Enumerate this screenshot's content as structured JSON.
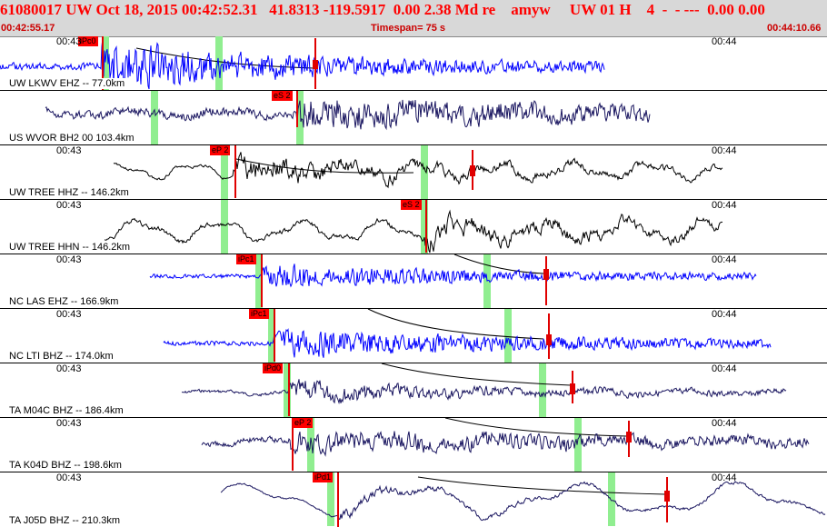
{
  "header": {
    "main": "61080017 UW Oct 18, 2015 00:42:52.31   41.8313 -119.5917  0.00 2.38 Md re    amyw     UW 01 H    4  -  - ---  0.00 0.00",
    "start_time": "00:42:55.17",
    "timespan": "Timespan= 75 s",
    "end_time": "00:44:10.66"
  },
  "colors": {
    "blue": "#0000ff",
    "navy": "#1a1660",
    "black": "#000000",
    "green": "#90ee90",
    "red": "#e00000"
  },
  "traces": [
    {
      "id": "lkwv",
      "station": "UW LKWV EHZ -- 77.0km",
      "time_left": "00:43",
      "time_right": "00:44",
      "color": "blue",
      "greens": [
        112,
        237
      ],
      "pick_label": "iPc0"
    },
    {
      "id": "wvor",
      "station": "US WVOR BH2 00 103.4km",
      "time_left": "",
      "time_right": "",
      "color": "navy",
      "greens": [
        166,
        326
      ],
      "pick_label": "eS 2"
    },
    {
      "id": "tree-hhz",
      "station": "UW TREE HHZ -- 146.2km",
      "time_left": "00:43",
      "time_right": "00:44",
      "color": "black",
      "greens": [
        243,
        463
      ],
      "pick_label": "eP 2"
    },
    {
      "id": "tree-hhn",
      "station": "UW TREE HHN -- 146.2km",
      "time_left": "00:43",
      "time_right": "00:44",
      "color": "black",
      "greens": [
        243,
        463
      ],
      "pick_label": "eS 2"
    },
    {
      "id": "las",
      "station": "NC LAS EHZ -- 166.9km",
      "time_left": "00:43",
      "time_right": "00:44",
      "color": "blue",
      "greens": [
        281,
        532
      ],
      "pick_label": "iPc1"
    },
    {
      "id": "lti",
      "station": "NC LTI BHZ -- 174.0km",
      "time_left": "00:43",
      "time_right": "00:44",
      "color": "blue",
      "greens": [
        295,
        555
      ],
      "pick_label": "iPc1"
    },
    {
      "id": "m04c",
      "station": "TA M04C BHZ -- 186.4km",
      "time_left": "00:43",
      "time_right": "00:44",
      "color": "navy",
      "greens": [
        312,
        593
      ],
      "pick_label": "iPd0"
    },
    {
      "id": "k04d",
      "station": "TA K04D BHZ -- 198.6km",
      "time_left": "00:43",
      "time_right": "00:44",
      "color": "navy",
      "greens": [
        338,
        632
      ],
      "pick_label": "eP 2"
    },
    {
      "id": "j05d",
      "station": "TA J05D BHZ -- 210.3km",
      "time_left": "00:43",
      "time_right": "00:44",
      "color": "navy",
      "greens": [
        360,
        669
      ],
      "pick_label": "iPd1"
    }
  ]
}
